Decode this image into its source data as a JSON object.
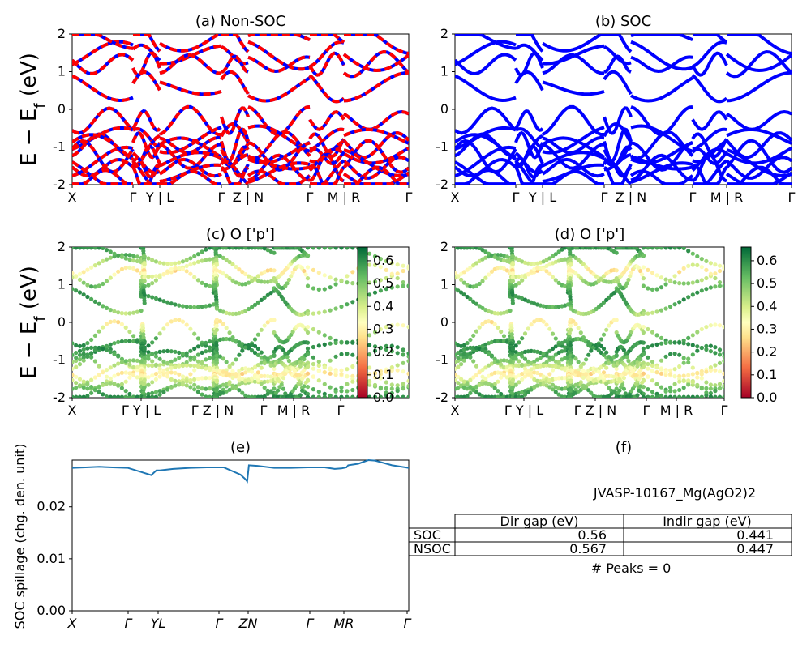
{
  "figure_id_text": "JVASP-10167_Mg(AgO2)2",
  "peaks_text": "# Peaks = 0",
  "ylabel_band": "E − E_f (eV)",
  "ylabel_spillage": "SOC spillage (chg. den. unit)",
  "colors": {
    "red": "#ff0000",
    "blue": "#0000ff",
    "spill": "#1f77b4",
    "frame": "#000000"
  },
  "chart_data": [
    {
      "id": "a",
      "type": "line",
      "title": "(a) Non-SOC",
      "ylim": [
        -2,
        2
      ],
      "yticks": [
        -2,
        -1,
        0,
        1,
        2
      ],
      "xticks": [
        "X",
        "Γ",
        "Y | L",
        "Γ",
        "Z | N",
        "Γ",
        "M | R",
        "Γ"
      ],
      "style": "dashed-red-blue",
      "bands_description": "electronic band structure, non spin-orbit"
    },
    {
      "id": "b",
      "type": "line",
      "title": "(b) SOC",
      "ylim": [
        -2,
        2
      ],
      "yticks": [
        -2,
        -1,
        0,
        1,
        2
      ],
      "xticks": [
        "X",
        "Γ",
        "Y | L",
        "Γ",
        "Z | N",
        "Γ",
        "M | R",
        "Γ"
      ],
      "style": "solid-blue"
    },
    {
      "id": "c",
      "type": "scatter",
      "title": "(c)  O ['p']",
      "ylim": [
        -2,
        2
      ],
      "yticks": [
        -2,
        -1,
        0,
        1,
        2
      ],
      "xticks": [
        "X",
        "Γ Y | L",
        "Γ Z | N",
        "Γ",
        "M | R",
        "Γ"
      ],
      "colorbar": {
        "cmap": "RdYlGn",
        "ticks": [
          "0.0",
          "0.1",
          "0.2",
          "0.3",
          "0.4",
          "0.5",
          "0.6"
        ],
        "range": [
          0,
          0.66
        ]
      }
    },
    {
      "id": "d",
      "type": "scatter",
      "title": "(d) O ['p']",
      "ylim": [
        -2,
        2
      ],
      "yticks": [
        -2,
        -1,
        0,
        1,
        2
      ],
      "xticks": [
        "X",
        "Γ Y | L",
        "Γ Z | N",
        "Γ",
        "M | R",
        "Γ"
      ],
      "colorbar": {
        "cmap": "RdYlGn",
        "ticks": [
          "0.0",
          "0.1",
          "0.2",
          "0.3",
          "0.4",
          "0.5",
          "0.6"
        ],
        "range": [
          0,
          0.66
        ]
      }
    },
    {
      "id": "e",
      "type": "line",
      "title": "(e)",
      "ylim": [
        0,
        0.029
      ],
      "yticks": [
        "0.00",
        "0.01",
        "0.02"
      ],
      "ytick_values": [
        0,
        0.01,
        0.02
      ],
      "xticks": [
        "X",
        "Γ",
        "YL",
        "Γ",
        "ZN",
        "Γ",
        "MR",
        "Γ"
      ],
      "x": [
        0,
        0.04,
        0.08,
        0.12,
        0.165,
        0.2,
        0.235,
        0.25,
        0.26,
        0.3,
        0.35,
        0.4,
        0.45,
        0.5,
        0.515,
        0.52,
        0.525,
        0.55,
        0.6,
        0.65,
        0.7,
        0.75,
        0.78,
        0.8,
        0.815,
        0.82,
        0.85,
        0.88,
        0.9,
        0.95,
        1.0
      ],
      "y": [
        0.0275,
        0.0276,
        0.0277,
        0.0276,
        0.0275,
        0.0268,
        0.0261,
        0.027,
        0.027,
        0.0273,
        0.0275,
        0.0276,
        0.0276,
        0.0262,
        0.0253,
        0.0249,
        0.028,
        0.0279,
        0.0275,
        0.0275,
        0.0276,
        0.0276,
        0.0273,
        0.0274,
        0.0276,
        0.028,
        0.0283,
        0.029,
        0.0289,
        0.028,
        0.0275
      ]
    },
    {
      "id": "f",
      "type": "table",
      "title": "(f)",
      "columns": [
        "",
        "Dir gap (eV)",
        "Indir gap (eV)"
      ],
      "rows": [
        {
          "label": "SOC",
          "dir": "0.56",
          "indir": "0.441"
        },
        {
          "label": "NSOC",
          "dir": "0.567",
          "indir": "0.447"
        }
      ]
    }
  ]
}
